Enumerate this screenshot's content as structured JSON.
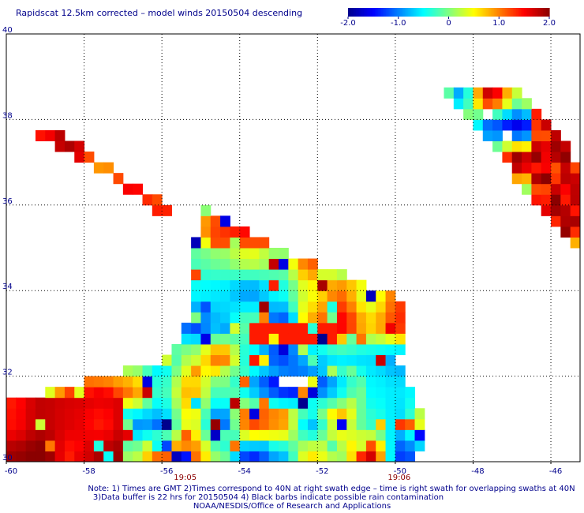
{
  "title": "Rapidscat 12.5km corrected – model winds 20150504 descending",
  "colorbar": {
    "ticks": [
      "-2.0",
      "-1.0",
      "0",
      "1.0",
      "2.0"
    ],
    "range": [
      -2.0,
      2.0
    ],
    "colors": [
      "#00008b",
      "#0000ff",
      "#0080ff",
      "#00ffff",
      "#80ff80",
      "#ffff00",
      "#ff8000",
      "#ff0000",
      "#8b0000"
    ]
  },
  "time_labels": [
    "19:05",
    "19:06"
  ],
  "time_label_color": "#8b0000",
  "notes": [
    "Note: 1) Times are GMT 2)Times correspond to 40N at right swath edge – time is right swath for overlapping swaths at 40N",
    "3)Data buffer is 22 hrs for 20150504 4) Black barbs indicate possible rain contamination",
    "NOAA/NESDIS/Office of Research and Applications"
  ],
  "chart_data": {
    "type": "heatmap",
    "title": "Rapidscat 12.5km corrected – model winds 20150504 descending",
    "xlabel": "",
    "ylabel": "",
    "x_ticks": [
      "-60",
      "-58",
      "-56",
      "-54",
      "-52",
      "-50",
      "-48",
      "-46"
    ],
    "y_ticks": [
      "30",
      "32",
      "34",
      "36",
      "38",
      "40"
    ],
    "xlim": [
      -60,
      -45.25
    ],
    "ylim": [
      30,
      40
    ],
    "cell_size_deg": 0.25,
    "value_range": [
      -2.0,
      2.0
    ],
    "grid": true,
    "regions": [
      {
        "name": "diagonal strip NW",
        "lon": [
          -60,
          -55.75
        ],
        "lat": [
          35.5,
          37.75
        ],
        "value_range": [
          0.5,
          2.0
        ]
      },
      {
        "name": "main swath",
        "lon": [
          -60,
          -49.5
        ],
        "lat": [
          30.0,
          36.25
        ],
        "value_range": [
          -2.0,
          2.0
        ]
      },
      {
        "name": "low anomaly",
        "center": [
          -52.75,
          31.7
        ],
        "value": -1.8
      },
      {
        "name": "east swath",
        "lon": [
          -48.5,
          -45.25
        ],
        "lat": [
          34.0,
          38.75
        ],
        "value_range": [
          -2.0,
          2.0
        ]
      }
    ]
  }
}
